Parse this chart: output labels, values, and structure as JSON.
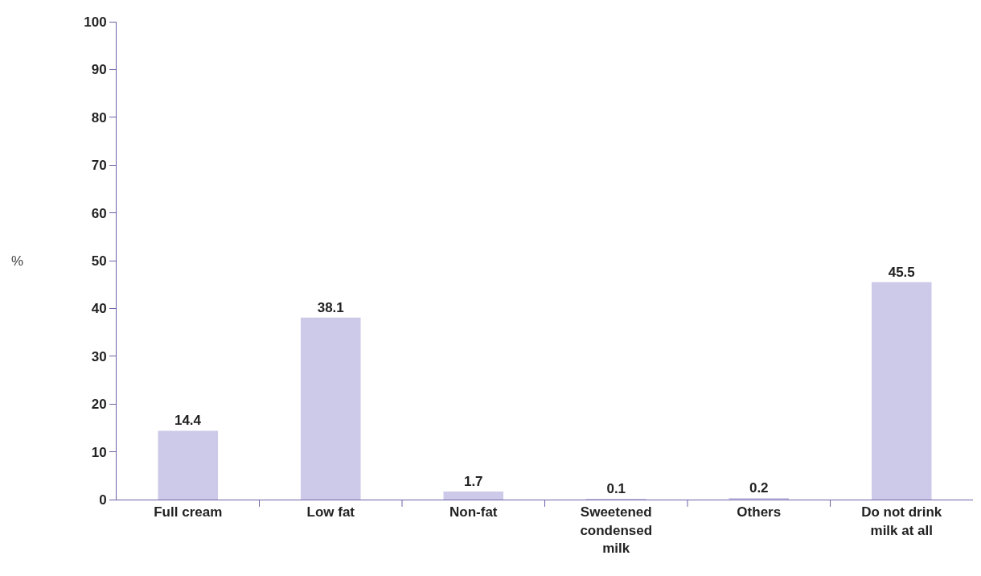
{
  "chart_data": {
    "type": "bar",
    "ylabel": "%",
    "categories": [
      "Full cream",
      "Low fat",
      "Non-fat",
      "Sweetened condensed milk",
      "Others",
      "Do not drink milk at all"
    ],
    "values": [
      14.4,
      38.1,
      1.7,
      0.1,
      0.2,
      45.5
    ],
    "color": "#cccae8",
    "ylim": [
      0,
      100
    ],
    "yticks": [
      0,
      10,
      20,
      30,
      40,
      50,
      60,
      70,
      80,
      90,
      100
    ],
    "data_labels": true
  }
}
